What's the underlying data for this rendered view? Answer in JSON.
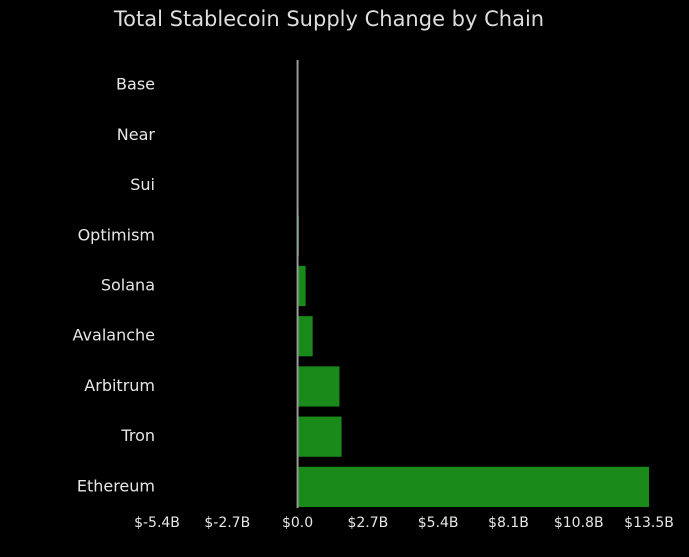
{
  "chart_data": {
    "type": "barh",
    "title": "Total Stablecoin Supply Change by Chain",
    "categories": [
      "Base",
      "Near",
      "Sui",
      "Optimism",
      "Solana",
      "Avalanche",
      "Arbitrum",
      "Tron",
      "Ethereum"
    ],
    "values": [
      0,
      0,
      0,
      0.05,
      0.31,
      0.58,
      1.61,
      1.69,
      13.5
    ],
    "color": "#1a8a1a",
    "xlim": [
      -5.4,
      13.5
    ],
    "xticks": [
      {
        "value": -5.4,
        "label": "$-5.4B"
      },
      {
        "value": -2.7,
        "label": "$-2.7B"
      },
      {
        "value": 0,
        "label": "$0.0"
      },
      {
        "value": 2.7,
        "label": "$2.7B"
      },
      {
        "value": 5.4,
        "label": "$5.4B"
      },
      {
        "value": 8.1,
        "label": "$8.1B"
      },
      {
        "value": 10.8,
        "label": "$10.8B"
      },
      {
        "value": 13.5,
        "label": "$13.5B"
      }
    ]
  }
}
